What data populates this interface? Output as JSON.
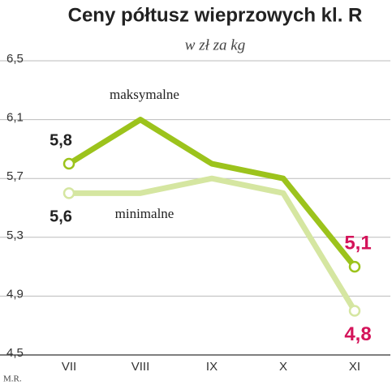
{
  "chart_data": {
    "type": "line",
    "title": "Ceny półtusz wieprzowych kl. R",
    "subtitle": "w zł za kg",
    "categories": [
      "VII",
      "VIII",
      "IX",
      "X",
      "XI"
    ],
    "series": [
      {
        "name": "maksymalne",
        "color": "#9cc31c",
        "values": [
          5.8,
          6.1,
          5.8,
          5.7,
          5.1
        ],
        "value_labels": [
          "5,8",
          null,
          null,
          null,
          "5,1"
        ]
      },
      {
        "name": "minimalne",
        "color": "#d5e6a1",
        "values": [
          5.6,
          5.6,
          5.7,
          5.6,
          4.8
        ],
        "value_labels": [
          "5,6",
          null,
          null,
          null,
          "4,8"
        ]
      }
    ],
    "ylim": [
      4.5,
      6.5
    ],
    "yticks": [
      {
        "value": 4.5,
        "label": "4,5"
      },
      {
        "value": 4.9,
        "label": "4,9"
      },
      {
        "value": 5.3,
        "label": "5,3"
      },
      {
        "value": 5.7,
        "label": "5,7"
      },
      {
        "value": 6.1,
        "label": "6,1"
      },
      {
        "value": 6.5,
        "label": "6,5"
      }
    ],
    "grid": true,
    "credit": "M.R."
  }
}
